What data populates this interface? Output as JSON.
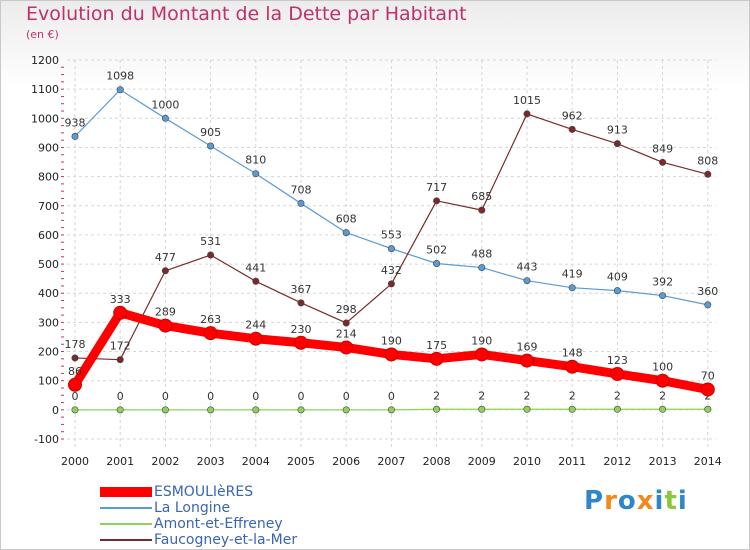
{
  "chart_data": {
    "type": "line",
    "title": "Evolution du Montant de la Dette par Habitant",
    "subtitle": "(en €)",
    "x": [
      "2000",
      "2001",
      "2002",
      "2003",
      "2004",
      "2005",
      "2006",
      "2007",
      "2008",
      "2009",
      "2010",
      "2011",
      "2012",
      "2013",
      "2014"
    ],
    "ylim": [
      -100,
      1200
    ],
    "yticks": [
      -100,
      0,
      100,
      200,
      300,
      400,
      500,
      600,
      700,
      800,
      900,
      1000,
      1100,
      1200
    ],
    "grid": true,
    "legend_position": "bottom-left",
    "series": [
      {
        "name": "La Longine",
        "color": "#5a9bd4",
        "values": [
          938,
          1098,
          1000,
          905,
          810,
          708,
          608,
          553,
          502,
          488,
          443,
          419,
          409,
          392,
          360
        ]
      },
      {
        "name": "Faucogney-et-la-Mer",
        "color": "#7a2a2a",
        "values": [
          178,
          172,
          477,
          531,
          441,
          367,
          298,
          432,
          717,
          685,
          1015,
          962,
          913,
          849,
          808
        ]
      },
      {
        "name": "Amont-et-Effreney",
        "color": "#8fd15c",
        "values": [
          0,
          0,
          0,
          0,
          0,
          0,
          0,
          0,
          2,
          2,
          2,
          2,
          2,
          2,
          2
        ]
      },
      {
        "name": "ESMOULIèRES",
        "color": "#ff0000",
        "values": [
          86,
          333,
          289,
          263,
          244,
          230,
          214,
          190,
          175,
          190,
          169,
          148,
          123,
          100,
          70
        ]
      }
    ],
    "legend": [
      "ESMOULIèRES",
      "La Longine",
      "Amont-et-Effreney",
      "Faucogney-et-la-Mer"
    ]
  },
  "brand": {
    "letters": [
      "P",
      "r",
      "o",
      "x",
      "i",
      "t",
      "i"
    ],
    "colors": [
      "#2f86c8",
      "#f08a1c",
      "#2f86c8",
      "#f08a1c",
      "#2f86c8",
      "#8cc63f",
      "#2f86c8"
    ]
  }
}
